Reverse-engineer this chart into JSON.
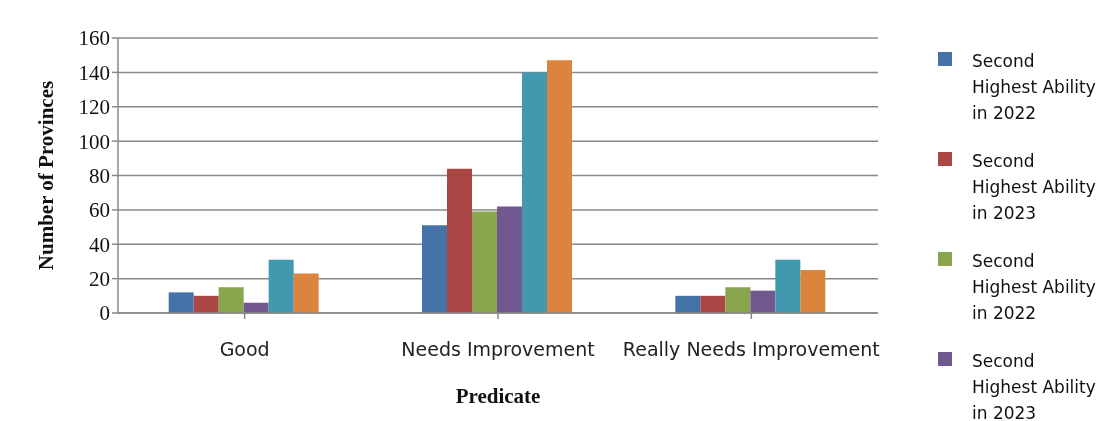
{
  "chart_data": {
    "type": "bar",
    "xlabel": "Predicate",
    "ylabel": "Number of Provinces",
    "categories": [
      "Good",
      "Needs Improvement",
      "Really Needs Improvement"
    ],
    "series": [
      {
        "name": "Second Highest Ability in 2022",
        "color": "#4572a7",
        "values": [
          12,
          51,
          10
        ]
      },
      {
        "name": "Second Highest Ability in 2023",
        "color": "#aa4643",
        "values": [
          10,
          84,
          10
        ]
      },
      {
        "name": "Second Highest Ability in 2022",
        "color": "#89a54e",
        "values": [
          15,
          59,
          15
        ]
      },
      {
        "name": "Second Highest Ability in 2023",
        "color": "#71588f",
        "values": [
          6,
          62,
          13
        ]
      },
      {
        "color": "#4198af",
        "values": [
          31,
          140,
          31
        ]
      },
      {
        "color": "#db843d",
        "values": [
          23,
          147,
          25
        ]
      }
    ],
    "ylim": [
      0,
      160
    ],
    "yticks": [
      0,
      20,
      40,
      60,
      80,
      100,
      120,
      140,
      160
    ],
    "grid": "y",
    "legend": "right"
  }
}
